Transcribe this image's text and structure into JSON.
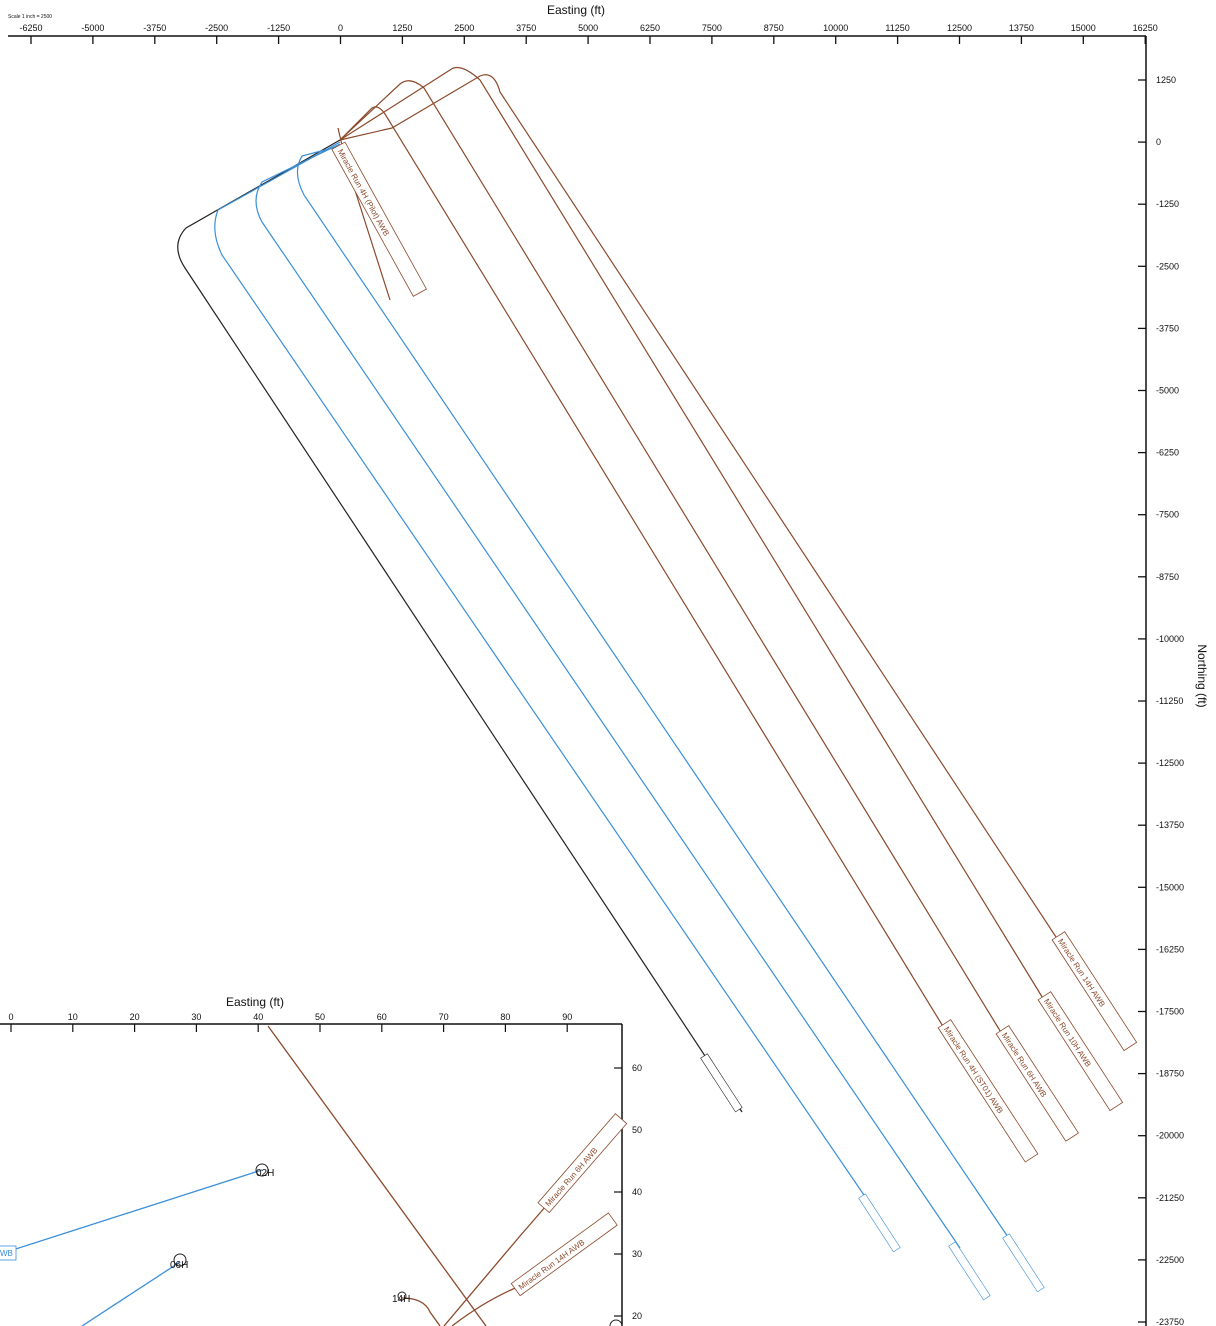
{
  "main_plot": {
    "x_axis_title": "Easting (ft)",
    "y_axis_title": "Northing (ft)",
    "scale_note": "Scale 1 inch = 2500",
    "x_ticks": [
      "-6250",
      "-5000",
      "-3750",
      "-2500",
      "-1250",
      "0",
      "1250",
      "2500",
      "3750",
      "5000",
      "6250",
      "7500",
      "8750",
      "10000",
      "11250",
      "12500",
      "13750",
      "15000",
      "16250"
    ],
    "y_ticks": [
      "1250",
      "0",
      "-1250",
      "-2500",
      "-3750",
      "-5000",
      "-6250",
      "-7500",
      "-8750",
      "-10000",
      "-11250",
      "-12500",
      "-13750",
      "-15000",
      "-16250",
      "-17500",
      "-18750",
      "-20000",
      "-21250",
      "-22500",
      "-23750"
    ]
  },
  "inset_plot": {
    "x_axis_title": "Easting (ft)",
    "x_ticks": [
      "0",
      "10",
      "20",
      "30",
      "40",
      "50",
      "60",
      "70",
      "80",
      "90"
    ],
    "y_ticks": [
      "60",
      "50",
      "40",
      "30",
      "20"
    ]
  },
  "colors": {
    "brown": "#8b4a2b",
    "blue": "#3a8fd8",
    "black": "#222222"
  },
  "wells": [
    {
      "name": "Miracle Run 4H (Pilot) AWB",
      "color": "brown"
    },
    {
      "name": "Miracle Run 14H AWB",
      "color": "brown"
    },
    {
      "name": "Miracle Run 10H AWB",
      "color": "brown"
    },
    {
      "name": "Miracle Run 6H AWB",
      "color": "brown"
    },
    {
      "name": "Miracle Run 4H (ST01) AWB",
      "color": "brown"
    }
  ],
  "inset_labels": {
    "well_6h": "Miracle Run 6H AWB",
    "well_14h": "Miracle Run 14H AWB",
    "surf_02h": "02H",
    "surf_06h": "06H",
    "surf_14h": "14H",
    "cut_label": "WB"
  }
}
